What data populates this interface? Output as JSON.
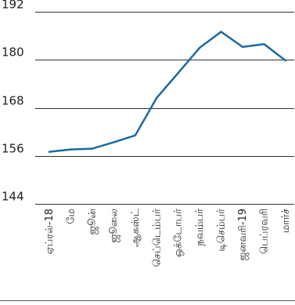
{
  "chart_data": {
    "type": "line",
    "categories": [
      "ஏப்ரல்-18",
      "மே",
      "ஜூன்",
      "ஜூலை",
      "ஆகஸ்ட்",
      "செப்டெம்பர்",
      "ஒக்டோபர்",
      "நவம்பர்",
      "டிசெம்பர்",
      "ஜனவரி-19",
      "பெப்ரவரி",
      "மார்ச்"
    ],
    "series": [
      {
        "values": [
          157.0,
          157.6,
          157.8,
          159.4,
          161.1,
          170.5,
          176.7,
          183.0,
          187.0,
          183.2,
          183.9,
          179.8
        ]
      }
    ],
    "ylim": [
      144,
      192
    ],
    "yticks": [
      144,
      156,
      168,
      180,
      192
    ],
    "grid": true,
    "line_color": "#1a6aa0"
  }
}
